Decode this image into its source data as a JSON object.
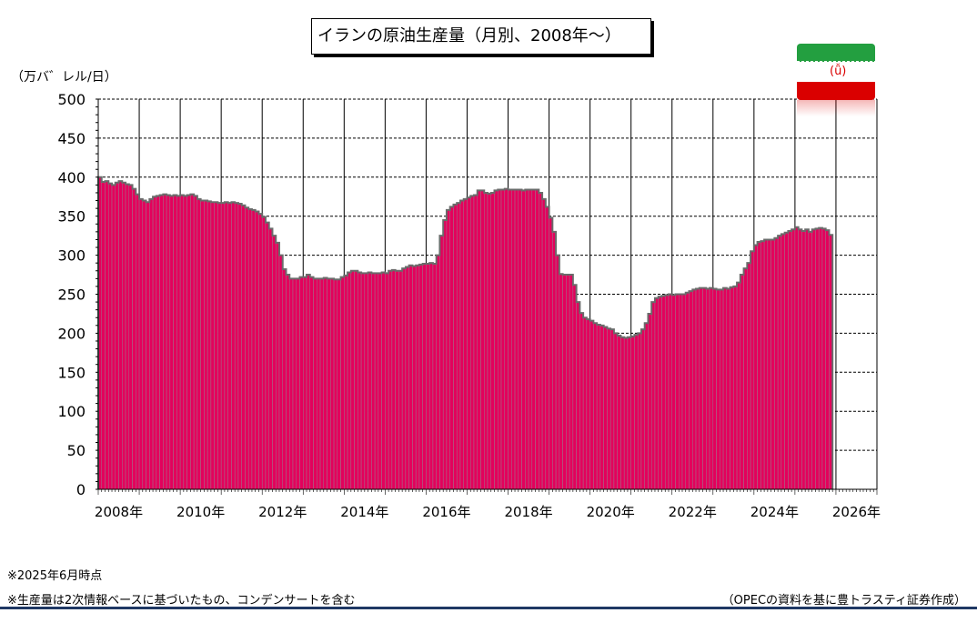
{
  "title": "イランの原油生産量（月別、2008年～）",
  "unit_label": "（万バ゛レル/日）",
  "notes": [
    "※2025年6月時点",
    "※生産量は2次情報ベースに基づいたもの、コンデンサートを含む"
  ],
  "source": "（OPECの資料を基に豊トラスティ証券作成）",
  "flag": {
    "emblem": "(ǚ)",
    "colors": {
      "green": "#239f40",
      "white": "#ffffff",
      "red": "#da0000"
    }
  },
  "chart_data": {
    "type": "bar",
    "title": "イランの原油生産量（月別、2008年～）",
    "ylabel": "（万バ゛レル/日）",
    "xlabel": "",
    "ylim": [
      0,
      500
    ],
    "xlim": [
      "2008-01",
      "2026-12"
    ],
    "y_ticks": [
      "0",
      "50",
      "100",
      "150",
      "200",
      "250",
      "300",
      "350",
      "400",
      "450",
      "500"
    ],
    "x_tick_labels": [
      "2008年",
      "2010年",
      "2012年",
      "2014年",
      "2016年",
      "2018年",
      "2020年",
      "2022年",
      "2024年",
      "2026年"
    ],
    "grid": "horizontal dashed, vertical solid",
    "bar_color": "#e3005c",
    "series": [
      {
        "start": "2008-01",
        "values": [
          400,
          394,
          395,
          392,
          390,
          393,
          395,
          393,
          391,
          390,
          385,
          378,
          372,
          370,
          368,
          372,
          375,
          376,
          377,
          378,
          377,
          376,
          377,
          376,
          377,
          376,
          377,
          378,
          376,
          372,
          370,
          370,
          369,
          368,
          368,
          367,
          367,
          368,
          367,
          368,
          367,
          366,
          364,
          361,
          359,
          358,
          356,
          353,
          349,
          342,
          334,
          325,
          316,
          300,
          282,
          275,
          270,
          270,
          270,
          272,
          272,
          275,
          272,
          270,
          270,
          270,
          271,
          270,
          270,
          269,
          269,
          272,
          274,
          278,
          280,
          280,
          278,
          277,
          277,
          278,
          277,
          277,
          277,
          278,
          277,
          280,
          281,
          280,
          280,
          283,
          285,
          287,
          286,
          287,
          288,
          289,
          289,
          290,
          289,
          300,
          325,
          345,
          358,
          362,
          365,
          367,
          370,
          372,
          374,
          376,
          377,
          383,
          383,
          380,
          379,
          380,
          383,
          384,
          384,
          385,
          384,
          384,
          384,
          384,
          383,
          384,
          384,
          384,
          384,
          380,
          372,
          362,
          348,
          330,
          300,
          276,
          275,
          275,
          275,
          262,
          240,
          226,
          220,
          218,
          216,
          213,
          211,
          210,
          208,
          206,
          205,
          200,
          197,
          195,
          194,
          195,
          196,
          198,
          200,
          205,
          213,
          225,
          240,
          245,
          247,
          248,
          249,
          250,
          249,
          250,
          250,
          250,
          252,
          254,
          256,
          257,
          258,
          258,
          257,
          258,
          257,
          256,
          256,
          258,
          257,
          259,
          260,
          265,
          275,
          283,
          290,
          305,
          313,
          317,
          318,
          320,
          320,
          320,
          322,
          325,
          327,
          329,
          331,
          333,
          336,
          333,
          331,
          333,
          330,
          333,
          334,
          335,
          334,
          332,
          326
        ]
      }
    ]
  }
}
